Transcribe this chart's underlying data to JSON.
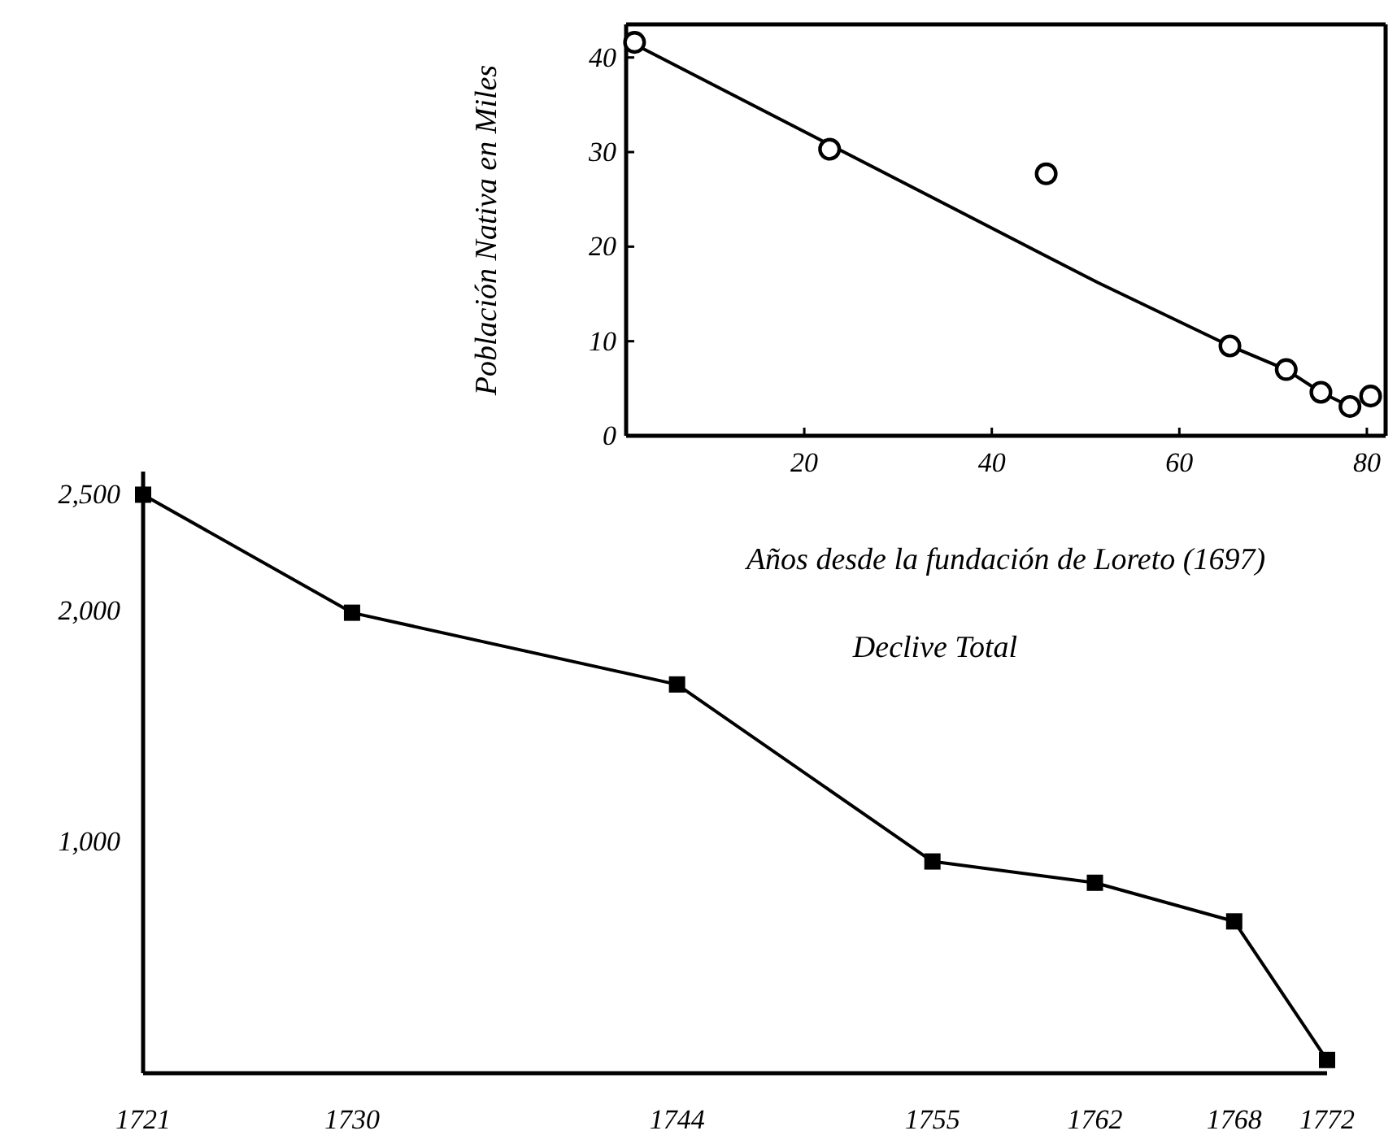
{
  "chart_data": [
    {
      "type": "scatter",
      "xlabel": "Años desde la fundación de Loreto (1697)",
      "ylabel": "Población Nativa en Miles",
      "xlim": [
        1,
        82
      ],
      "xticks": [
        20,
        40,
        60,
        80
      ],
      "ylim": [
        0,
        43.5
      ],
      "yticks": [
        0,
        10,
        20,
        30,
        40
      ],
      "series": [
        {
          "marker": "circle",
          "color": "#000000",
          "x": [
            1.9,
            22.7,
            45.8,
            65.4,
            71.4,
            75.1,
            78.2,
            80.4
          ],
          "values": [
            41.6,
            30.3,
            27.7,
            9.5,
            7.0,
            4.6,
            3.1,
            4.2
          ]
        },
        {
          "type": "line",
          "color": "#000000",
          "x": [
            1.9,
            51.3,
            65.4,
            71.4,
            75.1,
            78.2
          ],
          "values": [
            41.4,
            16.2,
            9.5,
            7.0,
            4.6,
            3.1
          ]
        }
      ]
    },
    {
      "type": "line",
      "title": "Declive Total",
      "marker": "square",
      "xlim": [
        1721,
        1772
      ],
      "xticks": [
        1721,
        1730,
        1744,
        1755,
        1762,
        1768,
        1772
      ],
      "ylim": [
        0,
        2600
      ],
      "yticks": [
        {
          "value": 1000,
          "label": "1,000"
        },
        {
          "value": 2000,
          "label": "2,000"
        },
        {
          "value": 2500,
          "label": "2,500"
        }
      ],
      "series": [
        {
          "color": "#000000",
          "x": [
            1721,
            1730,
            1744,
            1755,
            1762,
            1768,
            1772
          ],
          "values": [
            2500,
            1990,
            1680,
            915,
            823,
            656,
            57
          ]
        }
      ]
    }
  ]
}
